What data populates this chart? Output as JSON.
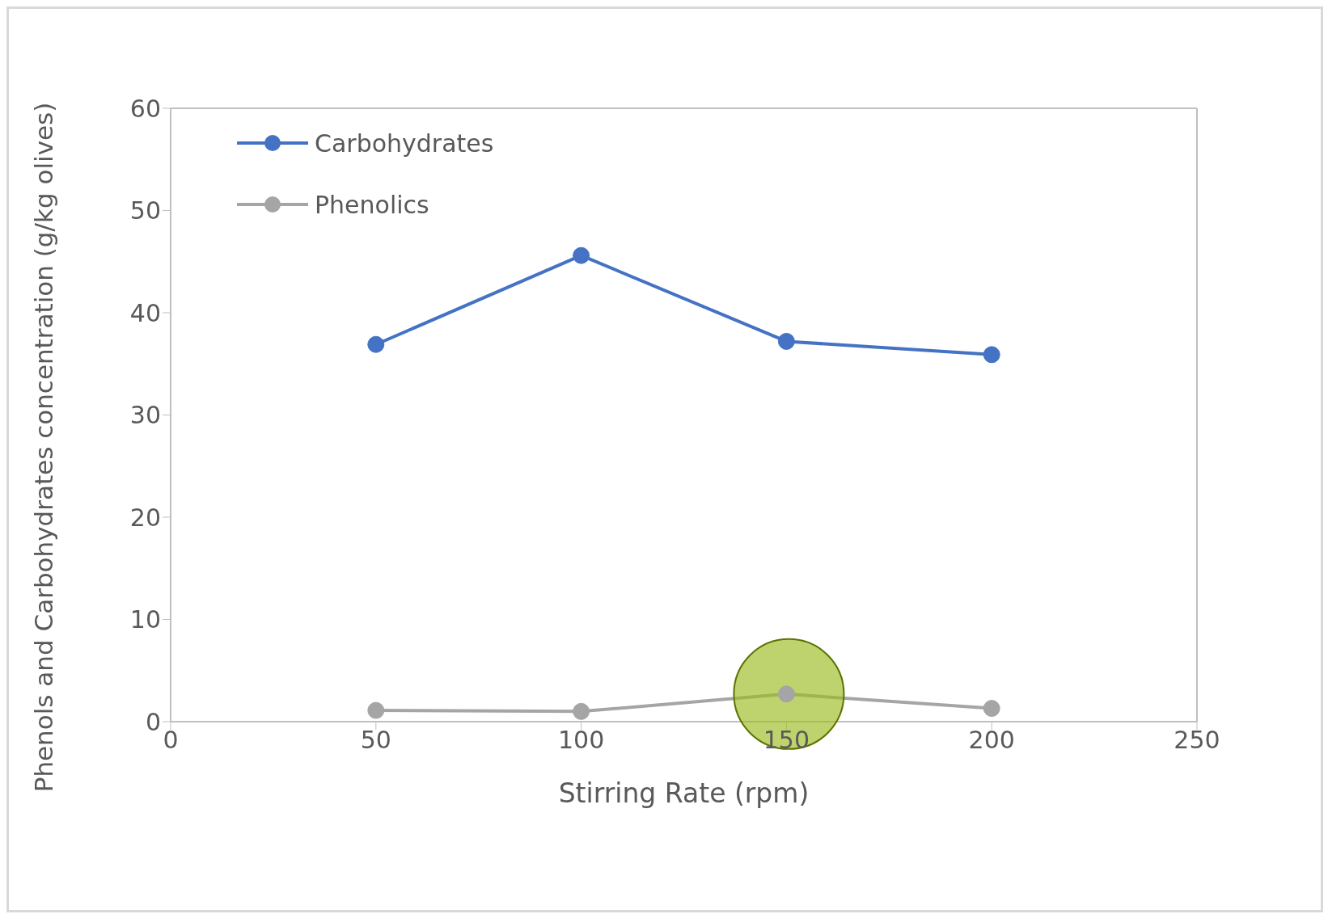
{
  "chart_data": {
    "type": "line",
    "xlabel": "Stirring Rate (rpm)",
    "ylabel": "Phenols and Carbohydrates concentration (g/kg olives)",
    "x": [
      50,
      100,
      150,
      200
    ],
    "series": [
      {
        "name": "Carbohydrates",
        "color": "#4472c4",
        "values": [
          36.9,
          45.6,
          37.2,
          35.9
        ]
      },
      {
        "name": "Phenolics",
        "color": "#a5a5a5",
        "values": [
          1.1,
          1.0,
          2.7,
          1.3
        ]
      }
    ],
    "xlim": [
      0,
      250
    ],
    "xticks": [
      0,
      50,
      100,
      150,
      200,
      250
    ],
    "ylim": [
      0,
      60
    ],
    "yticks": [
      0,
      10,
      20,
      30,
      40,
      50,
      60
    ],
    "legend": "top left",
    "marker": "circle",
    "line_style": "solid"
  }
}
